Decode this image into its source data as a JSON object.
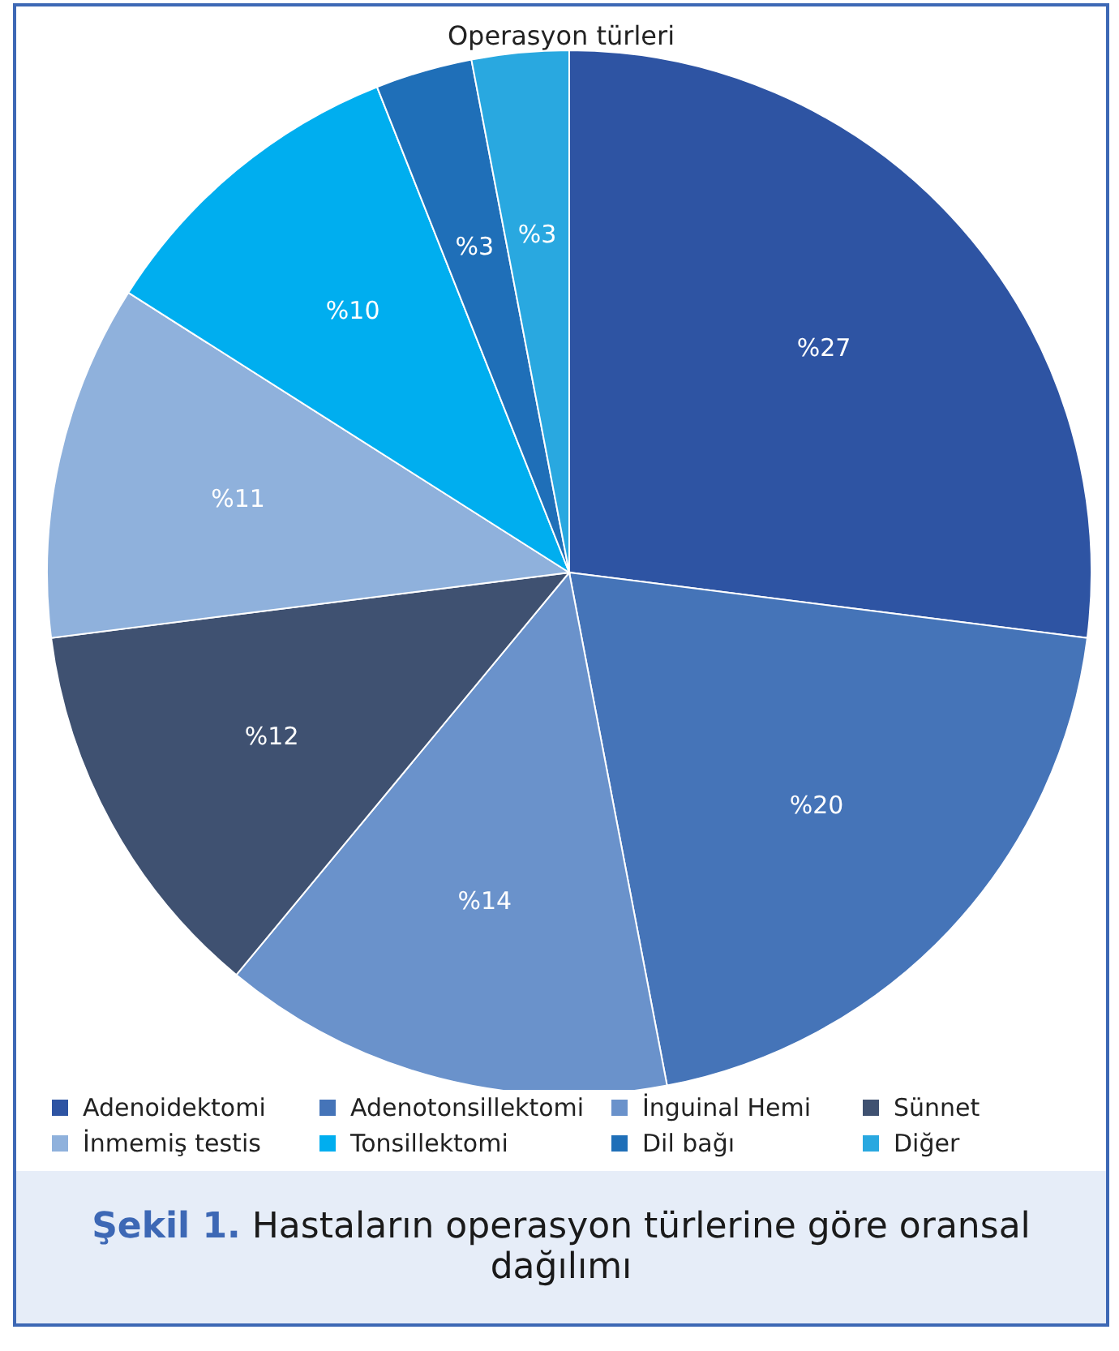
{
  "chart_data": {
    "type": "pie",
    "title": "Operasyon türleri",
    "categories": [
      "Adenoidektomi",
      "Adenotonsillektomi",
      "İnguinal Hemi",
      "Sünnet",
      "İnmemiş testis",
      "Tonsillektomi",
      "Dil bağı",
      "Diğer"
    ],
    "values": [
      27,
      20,
      14,
      12,
      11,
      10,
      3,
      3
    ],
    "colors": [
      "#2e54a3",
      "#4574b8",
      "#6a92cb",
      "#3f5171",
      "#8fb1dc",
      "#00aeef",
      "#1f6fb8",
      "#29a8e0"
    ],
    "value_labels": [
      "%27",
      "%20",
      "%14",
      "%12",
      "%11",
      "%10",
      "%3",
      "%3"
    ],
    "legend": "bottom",
    "annotations": [
      "Şekil 1. Hastaların operasyon türlerine göre oransal dağılımı"
    ]
  }
}
